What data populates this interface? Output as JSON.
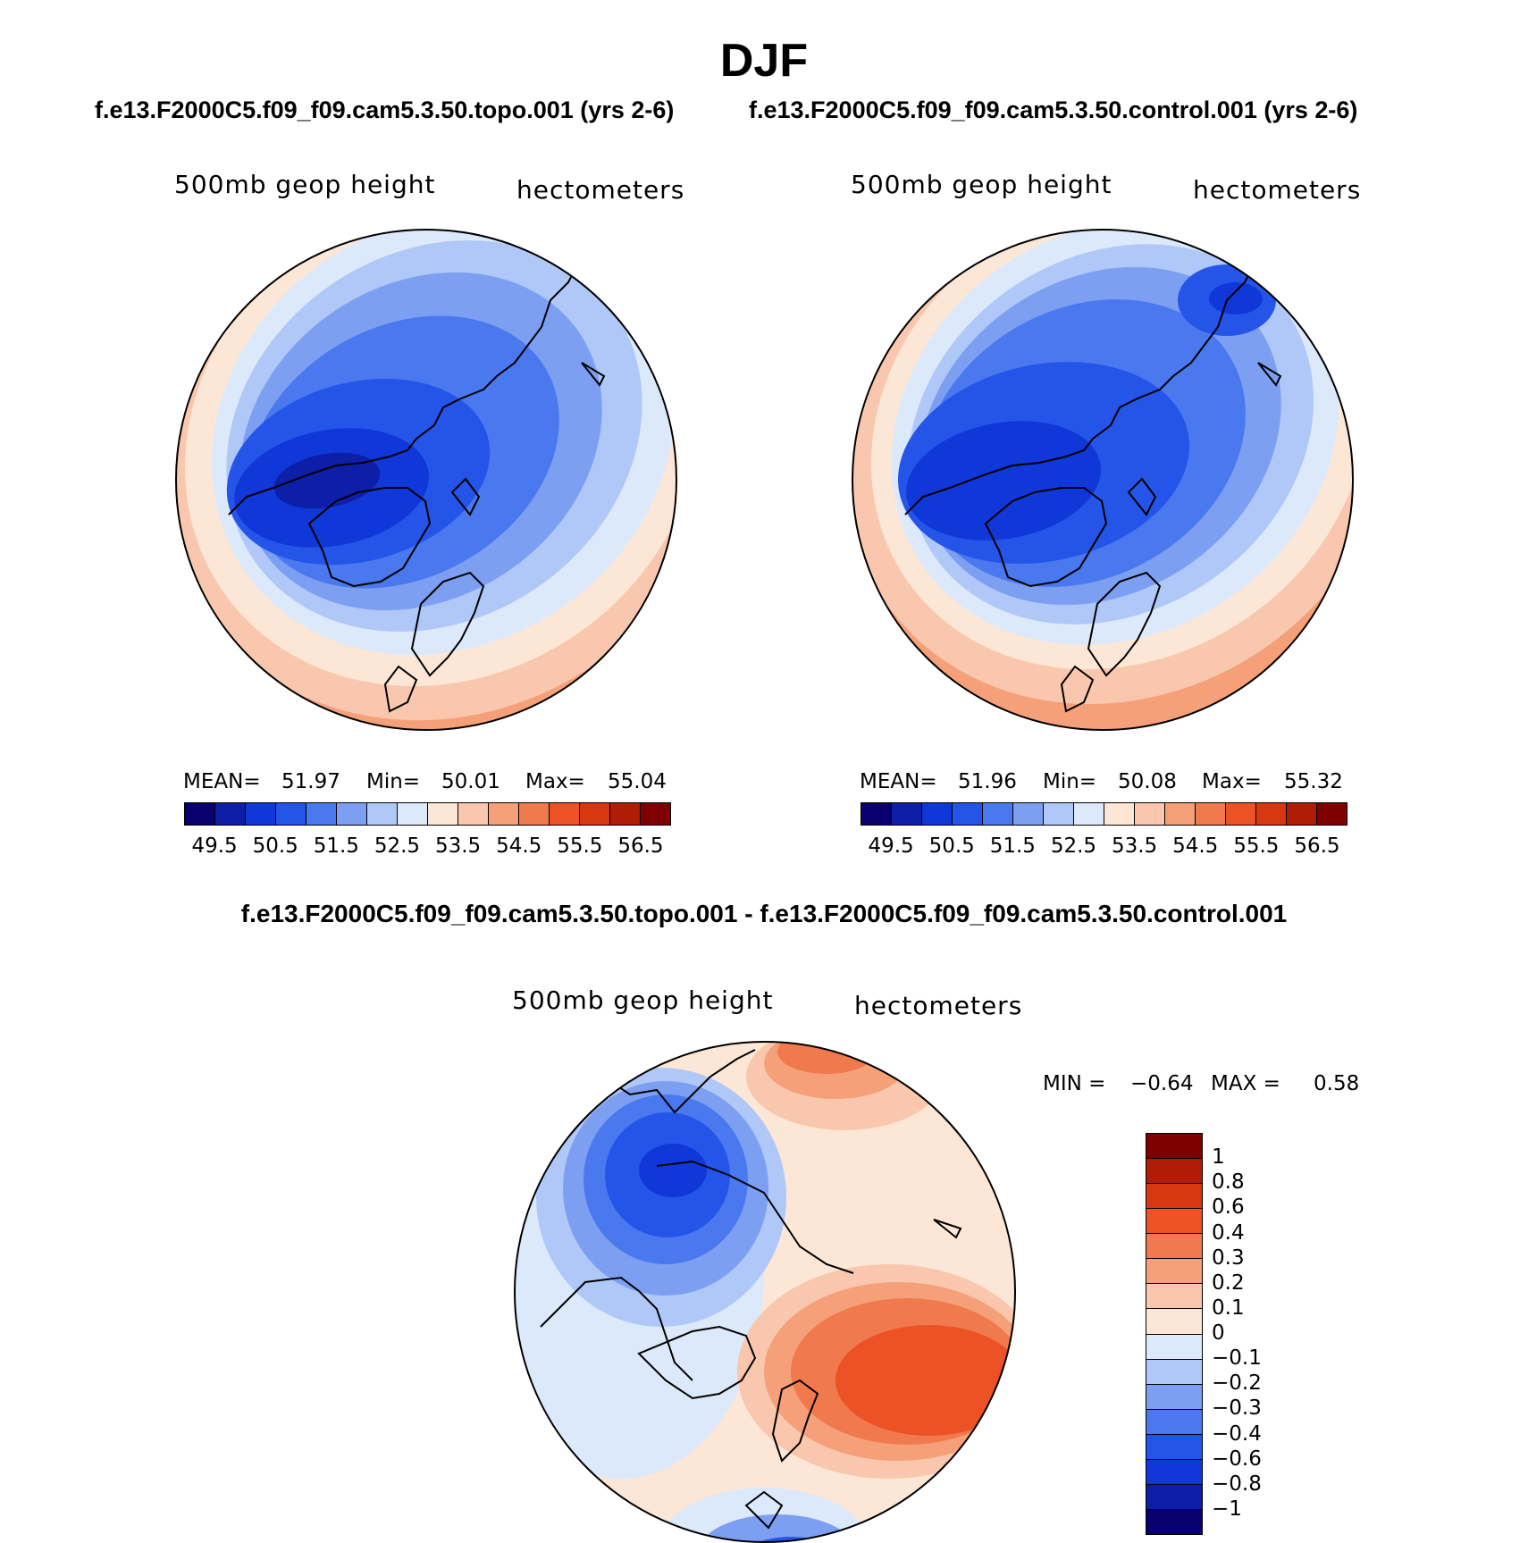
{
  "title": "DJF",
  "panels": {
    "topo": {
      "run_title": "f.e13.F2000C5.f09_f09.cam5.3.50.topo.001 (yrs 2-6)",
      "left_label": "500mb geop height",
      "right_label": "hectometers",
      "mean_label": "MEAN=",
      "mean": "51.97",
      "min_label": "Min=",
      "min": "50.01",
      "max_label": "Max=",
      "max": "55.04"
    },
    "control": {
      "run_title": "f.e13.F2000C5.f09_f09.cam5.3.50.control.001 (yrs 2-6)",
      "left_label": "500mb geop height",
      "right_label": "hectometers",
      "mean_label": "MEAN=",
      "mean": "51.96",
      "min_label": "Min=",
      "min": "50.08",
      "max_label": "Max=",
      "max": "55.32"
    },
    "diff": {
      "title": "f.e13.F2000C5.f09_f09.cam5.3.50.topo.001 - f.e13.F2000C5.f09_f09.cam5.3.50.control.001",
      "left_label": "500mb geop height",
      "right_label": "hectometers",
      "min_label": "MIN =",
      "min": "−0.64",
      "max_label": "MAX =",
      "max": "0.58"
    }
  },
  "colorbar_abs": {
    "labels": [
      "49.5",
      "50.5",
      "51.5",
      "52.5",
      "53.5",
      "54.5",
      "55.5",
      "56.5"
    ],
    "colors": [
      "#08006e",
      "#0d1fa8",
      "#1038d8",
      "#2455e8",
      "#4a78ee",
      "#7c9ff2",
      "#b0c8f8",
      "#dce9fb",
      "#fce7d6",
      "#f9c7ad",
      "#f6a07a",
      "#f07a4e",
      "#ec5225",
      "#d8380f",
      "#b01c06",
      "#800000"
    ]
  },
  "colorbar_diff": {
    "labels": [
      "1",
      "0.8",
      "0.6",
      "0.4",
      "0.3",
      "0.2",
      "0.1",
      "0",
      "−0.1",
      "−0.2",
      "−0.3",
      "−0.4",
      "−0.6",
      "−0.8",
      "−1"
    ],
    "colors": [
      "#800000",
      "#b01c06",
      "#d8380f",
      "#ec5225",
      "#f07a4e",
      "#f6a07a",
      "#f9c7ad",
      "#fce7d6",
      "#dce9fb",
      "#b0c8f8",
      "#7c9ff2",
      "#4a78ee",
      "#2455e8",
      "#1038d8",
      "#0d1fa8",
      "#08006e"
    ]
  },
  "map_colors": {
    "c1": "#f6a07a",
    "c2": "#f9c7ad",
    "c3": "#fce7d6",
    "c4": "#dce9fb",
    "c5": "#b0c8f8",
    "c6": "#7c9ff2",
    "c7": "#4a78ee",
    "c8": "#2455e8",
    "c9": "#1038d8",
    "c10": "#0d1fa8",
    "c11": "#f07a4e",
    "c12": "#ec5225"
  }
}
